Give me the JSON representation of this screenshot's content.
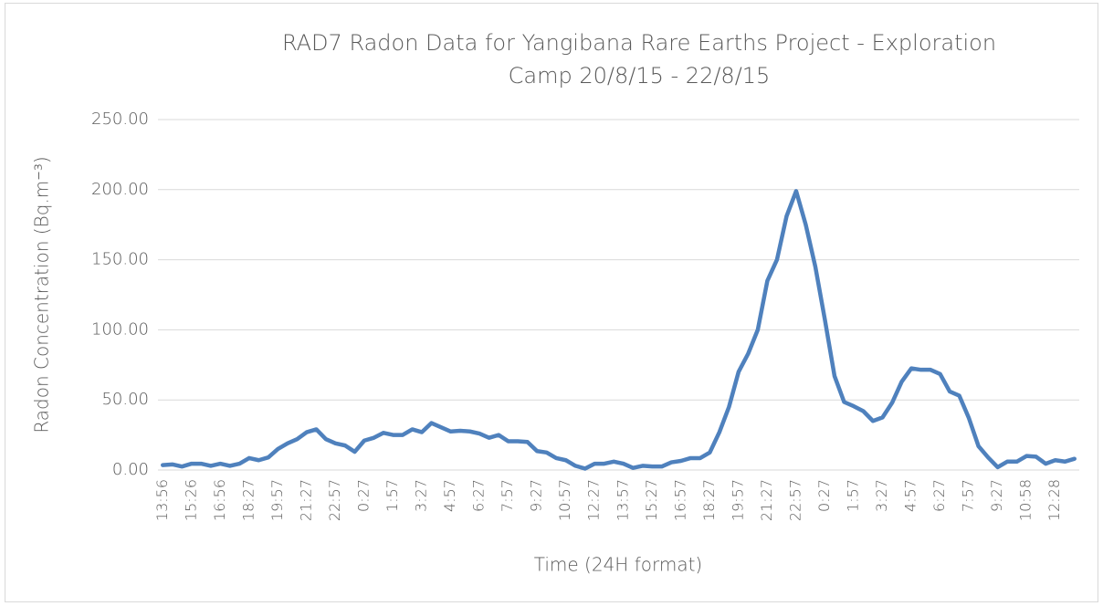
{
  "chart_data": {
    "type": "line",
    "title": [
      "RAD7 Radon Data for Yangibana Rare Earths Project - Exploration",
      "Camp 20/8/15 - 22/8/15"
    ],
    "x_label": "Time (24H format)",
    "y_label": "Radon Concentration (Bq.m⁻³)",
    "categories": [
      "13:56",
      null,
      null,
      "15:26",
      null,
      null,
      "16:56",
      null,
      null,
      "18:27",
      null,
      null,
      "19:57",
      null,
      null,
      "21:27",
      null,
      null,
      "22:57",
      null,
      null,
      "0:27",
      null,
      null,
      "1:57",
      null,
      null,
      "3:27",
      null,
      null,
      "4:57",
      null,
      null,
      "6:27",
      null,
      null,
      "7:57",
      null,
      null,
      "9:27",
      null,
      null,
      "10:57",
      null,
      null,
      "12:27",
      null,
      null,
      "13:57",
      null,
      null,
      "15:27",
      null,
      null,
      "16:57",
      null,
      null,
      "18:27",
      null,
      null,
      "19:57",
      null,
      null,
      "21:27",
      null,
      null,
      "22:57",
      null,
      null,
      "0:27",
      null,
      null,
      "1:57",
      null,
      null,
      "3:27",
      null,
      null,
      "4:57",
      null,
      null,
      "6:27",
      null,
      null,
      "7:57",
      null,
      null,
      "9:27",
      null,
      null,
      "10:58",
      null,
      null,
      "12:28",
      null,
      null
    ],
    "series": [
      {
        "name": "Radon",
        "color": "#4f81bd",
        "values": [
          3.5,
          4,
          2.5,
          4.5,
          4.5,
          3,
          4.5,
          3,
          4.5,
          8.5,
          7,
          9,
          15,
          19,
          22,
          27,
          29,
          22,
          19,
          17.5,
          13,
          21,
          23,
          26.5,
          25,
          25,
          29,
          27,
          33.5,
          30.5,
          27.5,
          28,
          27.5,
          26,
          23,
          25,
          20.5,
          20.5,
          20,
          13.5,
          12.5,
          8.5,
          7,
          3,
          1,
          4.5,
          4.5,
          6,
          4.5,
          1.5,
          3,
          2.5,
          2.5,
          5.5,
          6.5,
          8.5,
          8.5,
          12.5,
          27,
          45,
          70,
          83,
          100,
          135,
          150,
          181,
          199,
          175,
          145,
          107,
          67,
          48.5,
          45.5,
          42,
          35,
          37.5,
          48,
          63,
          72.5,
          71.5,
          71.5,
          68.5,
          56,
          53,
          37,
          17,
          9,
          2,
          6,
          6,
          10,
          9.5,
          4.5,
          7,
          6,
          8
        ]
      }
    ],
    "ylim": [
      0,
      250
    ],
    "yticks": [
      {
        "value": 0,
        "label": "0.00"
      },
      {
        "value": 50,
        "label": "50.00"
      },
      {
        "value": 100,
        "label": "100.00"
      },
      {
        "value": 150,
        "label": "150.00"
      },
      {
        "value": 200,
        "label": "200.00"
      },
      {
        "value": 250,
        "label": "250.00"
      }
    ],
    "grid": true,
    "legend": false
  }
}
